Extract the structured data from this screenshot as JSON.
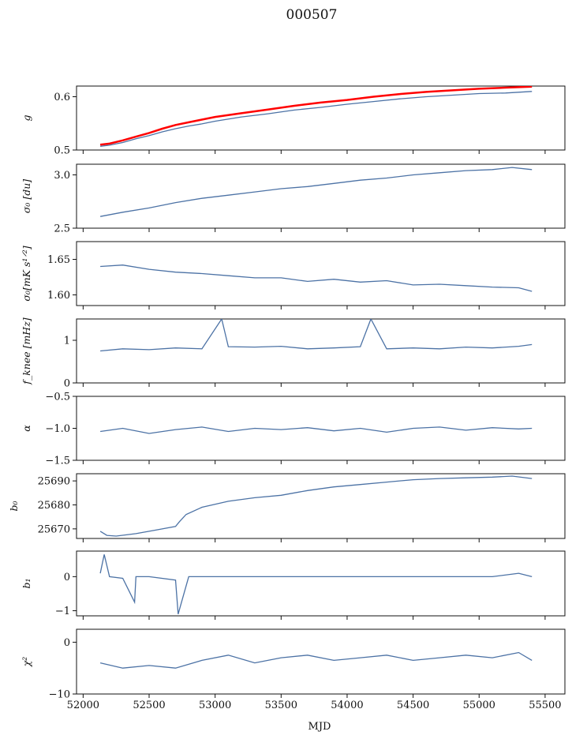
{
  "title": "000507",
  "chart_data": {
    "type": "line",
    "title": "000507",
    "xlabel": "MJD",
    "xlim": [
      51950,
      55650
    ],
    "xticks": [
      52000,
      52500,
      53000,
      53500,
      54000,
      54500,
      55000,
      55500
    ],
    "colors": {
      "main": "#4c72a5",
      "overlay": "#ff0000"
    },
    "panels": [
      {
        "name": "g",
        "ylabel": "g",
        "ylim": [
          0.5,
          0.62
        ],
        "yticks": [
          0.5,
          0.6
        ],
        "ytick_labels": [
          "0.5",
          "0.6"
        ],
        "series": [
          {
            "color": "main",
            "x": [
              52130,
              52200,
              52300,
              52400,
              52500,
              52600,
              52700,
              52800,
              52900,
              53000,
              53200,
              53400,
              53600,
              53800,
              54000,
              54200,
              54400,
              54600,
              54800,
              55000,
              55200,
              55400
            ],
            "y": [
              0.507,
              0.509,
              0.514,
              0.521,
              0.527,
              0.534,
              0.54,
              0.545,
              0.549,
              0.554,
              0.562,
              0.568,
              0.575,
              0.58,
              0.586,
              0.591,
              0.596,
              0.6,
              0.603,
              0.606,
              0.607,
              0.61
            ]
          },
          {
            "color": "overlay",
            "x": [
              52130,
              52200,
              52300,
              52400,
              52500,
              52600,
              52700,
              52800,
              52900,
              53000,
              53200,
              53400,
              53600,
              53800,
              54000,
              54200,
              54400,
              54600,
              54800,
              55000,
              55200,
              55400
            ],
            "y": [
              0.51,
              0.512,
              0.518,
              0.525,
              0.532,
              0.54,
              0.547,
              0.552,
              0.557,
              0.562,
              0.569,
              0.576,
              0.583,
              0.589,
              0.594,
              0.6,
              0.605,
              0.609,
              0.612,
              0.615,
              0.617,
              0.619
            ]
          }
        ]
      },
      {
        "name": "sigma0-du",
        "ylabel": "σ₀ [du]",
        "ylim": [
          2.5,
          3.1
        ],
        "yticks": [
          2.5,
          3.0
        ],
        "ytick_labels": [
          "2.5",
          "3.0"
        ],
        "series": [
          {
            "color": "main",
            "x": [
              52130,
              52300,
              52500,
              52700,
              52900,
              53100,
              53300,
              53500,
              53700,
              53900,
              54100,
              54300,
              54500,
              54700,
              54900,
              55100,
              55250,
              55400
            ],
            "y": [
              2.61,
              2.65,
              2.69,
              2.74,
              2.78,
              2.81,
              2.84,
              2.87,
              2.89,
              2.92,
              2.95,
              2.97,
              3.0,
              3.02,
              3.04,
              3.05,
              3.07,
              3.05
            ]
          }
        ]
      },
      {
        "name": "sigma0-mk",
        "ylabel": "σ₀[mK s¹ᐟ²]",
        "ylim": [
          1.585,
          1.675
        ],
        "yticks": [
          1.6,
          1.65
        ],
        "ytick_labels": [
          "1.60",
          "1.65"
        ],
        "series": [
          {
            "color": "main",
            "x": [
              52130,
              52300,
              52500,
              52700,
              52900,
              53100,
              53300,
              53500,
              53700,
              53900,
              54100,
              54300,
              54500,
              54700,
              54900,
              55100,
              55300,
              55400
            ],
            "y": [
              1.64,
              1.642,
              1.636,
              1.632,
              1.63,
              1.627,
              1.624,
              1.624,
              1.619,
              1.622,
              1.618,
              1.62,
              1.614,
              1.615,
              1.613,
              1.611,
              1.61,
              1.605
            ]
          }
        ]
      },
      {
        "name": "fknee",
        "ylabel": "f_knee [mHz]",
        "ylim": [
          0,
          1.5
        ],
        "yticks": [
          0,
          1
        ],
        "ytick_labels": [
          "0",
          "1"
        ],
        "series": [
          {
            "color": "main",
            "x": [
              52130,
              52300,
              52500,
              52700,
              52900,
              53050,
              53100,
              53300,
              53500,
              53700,
              53900,
              54100,
              54180,
              54300,
              54500,
              54700,
              54900,
              55100,
              55300,
              55400
            ],
            "y": [
              0.75,
              0.8,
              0.78,
              0.82,
              0.8,
              1.5,
              0.85,
              0.84,
              0.86,
              0.8,
              0.82,
              0.85,
              1.5,
              0.8,
              0.82,
              0.8,
              0.84,
              0.82,
              0.86,
              0.9
            ]
          }
        ]
      },
      {
        "name": "alpha",
        "ylabel": "α",
        "ylim": [
          -1.5,
          -0.5
        ],
        "yticks": [
          -1.5,
          -1.0,
          -0.5
        ],
        "ytick_labels": [
          "−1.5",
          "−1.0",
          "−0.5"
        ],
        "series": [
          {
            "color": "main",
            "x": [
              52130,
              52300,
              52500,
              52700,
              52900,
              53100,
              53300,
              53500,
              53700,
              53900,
              54100,
              54300,
              54500,
              54700,
              54900,
              55100,
              55300,
              55400
            ],
            "y": [
              -1.05,
              -1.0,
              -1.08,
              -1.02,
              -0.98,
              -1.05,
              -1.0,
              -1.02,
              -0.99,
              -1.04,
              -1.0,
              -1.06,
              -1.0,
              -0.98,
              -1.03,
              -0.99,
              -1.01,
              -1.0
            ]
          }
        ]
      },
      {
        "name": "b0",
        "ylabel": "b₀",
        "ylim": [
          25666,
          25693
        ],
        "yticks": [
          25670,
          25680,
          25690
        ],
        "ytick_labels": [
          "25670",
          "25680",
          "25690"
        ],
        "series": [
          {
            "color": "main",
            "x": [
              52130,
              52180,
              52250,
              52400,
              52550,
              52700,
              52730,
              52780,
              52900,
              53100,
              53300,
              53500,
              53700,
              53900,
              54100,
              54300,
              54500,
              54700,
              54900,
              55100,
              55250,
              55400
            ],
            "y": [
              25669,
              25667.3,
              25667,
              25668,
              25669.5,
              25671,
              25673,
              25676,
              25679,
              25681.5,
              25683,
              25684,
              25686,
              25687.5,
              25688.5,
              25689.5,
              25690.5,
              25691,
              25691.3,
              25691.6,
              25692,
              25691
            ]
          }
        ]
      },
      {
        "name": "b1",
        "ylabel": "b₁",
        "ylim": [
          -1.15,
          0.75
        ],
        "yticks": [
          -1,
          0
        ],
        "ytick_labels": [
          "−1",
          "0"
        ],
        "series": [
          {
            "color": "main",
            "x": [
              52130,
              52160,
              52200,
              52300,
              52390,
              52400,
              52500,
              52700,
              52720,
              52800,
              53000,
              53300,
              53600,
              53900,
              54200,
              54500,
              54800,
              55100,
              55300,
              55400
            ],
            "y": [
              0.1,
              0.65,
              0.0,
              -0.05,
              -0.75,
              0.0,
              0.0,
              -0.1,
              -1.1,
              0.0,
              0.0,
              0.0,
              0.0,
              0.0,
              0.0,
              0.0,
              0.0,
              0.0,
              0.1,
              0.0
            ]
          }
        ]
      },
      {
        "name": "chi2",
        "ylabel": "χ²",
        "ylim": [
          -10,
          2.5
        ],
        "yticks": [
          -10,
          0
        ],
        "ytick_labels": [
          "−10",
          "0"
        ],
        "series": [
          {
            "color": "main",
            "x": [
              52130,
              52300,
              52500,
              52700,
              52900,
              53100,
              53300,
              53500,
              53700,
              53900,
              54100,
              54300,
              54500,
              54700,
              54900,
              55100,
              55300,
              55400
            ],
            "y": [
              -4,
              -5,
              -4.5,
              -5,
              -3.5,
              -2.5,
              -4,
              -3,
              -2.5,
              -3.5,
              -3,
              -2.5,
              -3.5,
              -3,
              -2.5,
              -3,
              -2,
              -3.5
            ]
          }
        ]
      }
    ]
  }
}
